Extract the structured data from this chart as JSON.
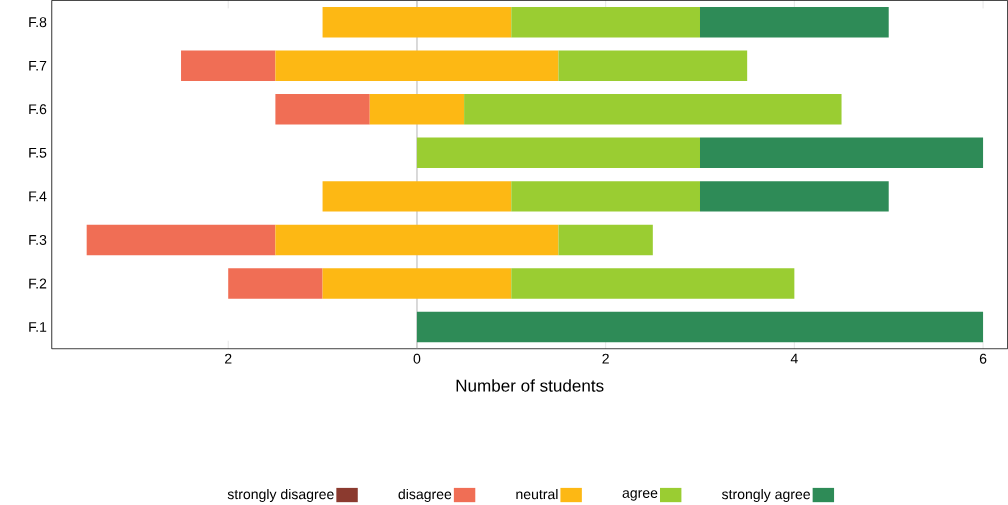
{
  "chart_data": {
    "type": "bar",
    "orientation": "horizontal",
    "xlabel": "Number of students",
    "categories": [
      "F.8",
      "F.7",
      "F.6",
      "F.5",
      "F.4",
      "F.3",
      "F.2",
      "F.1"
    ],
    "series": [
      {
        "name": "strongly disagree",
        "color": "#8b3a2f",
        "values": [
          null,
          null,
          null,
          null,
          null,
          null,
          null,
          null
        ],
        "base": [
          null,
          null,
          null,
          null,
          null,
          null,
          null,
          null
        ]
      },
      {
        "name": "disagree",
        "color": "#f06e55",
        "values": [
          null,
          1,
          1,
          null,
          null,
          2,
          1,
          null
        ],
        "base": [
          null,
          -2.5,
          -1.5,
          null,
          null,
          -3.5,
          -2,
          null
        ]
      },
      {
        "name": "neutral",
        "color": "#fdb814",
        "values": [
          2,
          3,
          1,
          null,
          2,
          3,
          2,
          null
        ],
        "base": [
          -1,
          -1.5,
          -0.5,
          null,
          -1,
          -1.5,
          -1,
          null
        ]
      },
      {
        "name": "agree",
        "color": "#9acd32",
        "values": [
          2,
          2,
          4,
          3,
          2,
          1,
          3,
          null
        ],
        "base": [
          1,
          1.5,
          0.5,
          0,
          1,
          1.5,
          1,
          null
        ]
      },
      {
        "name": "strongly agree",
        "color": "#2e8b57",
        "values": [
          2,
          null,
          null,
          3,
          2,
          null,
          null,
          6
        ],
        "base": [
          3,
          null,
          null,
          3,
          3,
          null,
          null,
          0
        ]
      }
    ],
    "xlim": [
      -3.87,
      6.26
    ],
    "xticks": [
      {
        "value": -2,
        "label": "2"
      },
      0,
      2,
      4,
      6
    ],
    "ref_lines": [
      {
        "axis": "x",
        "value": 0,
        "color": "#a0a0a0"
      }
    ],
    "legend": "bottom"
  }
}
